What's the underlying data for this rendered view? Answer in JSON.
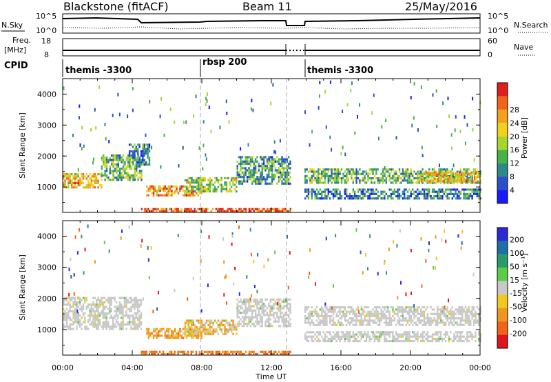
{
  "header": {
    "station": "Blackstone (fitACF)",
    "beam": "Beam 11",
    "date": "25/May/2016"
  },
  "noise_panel": {
    "left_label": "N.Sky",
    "right_label": "N.Search",
    "left_ticks": [
      "10^5",
      "10^0"
    ],
    "right_ticks": [
      "10^5",
      "10^0"
    ]
  },
  "freq_panel": {
    "left_label_1": "Freq.",
    "left_label_2": "[MHz]",
    "right_label": "Nave",
    "left_ticks": [
      "18",
      "8"
    ],
    "right_ticks": [
      "60",
      "0"
    ],
    "freq_mhz": 10.4,
    "nave": 22
  },
  "cpid_panel": {
    "label": "CPID",
    "segments": [
      {
        "text": "themis -3300",
        "start_hr": 0.0,
        "end_hr": 7.95
      },
      {
        "text": "rbsp 200",
        "start_hr": 7.95,
        "end_hr": 13.1
      },
      {
        "text": "themis -3300",
        "start_hr": 13.9,
        "end_hr": 24.0
      }
    ]
  },
  "x_axis": {
    "label": "Time UT",
    "ticks": [
      "00:00",
      "04:00",
      "08:00",
      "12:00",
      "16:00",
      "20:00",
      "00:00"
    ]
  },
  "y_axis": {
    "label": "Slant Range [km]",
    "ticks": [
      "1000",
      "2000",
      "3000",
      "4000"
    ]
  },
  "colorbar_power": {
    "label": "Power [dB]",
    "ticks": [
      "4",
      "8",
      "12",
      "16",
      "20",
      "24",
      "28"
    ],
    "colors": [
      "#1a1aff",
      "#2a4fc8",
      "#2e8a8a",
      "#46b346",
      "#a6d62a",
      "#f0d21a",
      "#f2a21a",
      "#f0641a",
      "#e01e1e"
    ]
  },
  "colorbar_velocity": {
    "label": "Velocity [m s⁻¹]",
    "ticks": [
      "200",
      "100",
      "50",
      "15",
      "-15",
      "-50",
      "-100",
      "-200"
    ],
    "colors": [
      "#2a2ad6",
      "#1e6ea8",
      "#2a9a6a",
      "#5acc46",
      "#c8c8c8",
      "#f0c81e",
      "#f0961e",
      "#f06414",
      "#e0141e"
    ]
  },
  "chart_data": {
    "type": "heatmap",
    "title": "Blackstone (fitACF) Beam 11 25/May/2016",
    "xlabel": "Time UT",
    "xlim_hours": [
      0,
      24
    ],
    "ylim_km": [
      180,
      4500
    ],
    "data_gap_hours": [
      13.1,
      13.9
    ],
    "panels": [
      {
        "name": "Power [dB]",
        "zlim": [
          0,
          30
        ],
        "bands": [
          {
            "t0": 0.0,
            "t1": 2.2,
            "r0": 1000,
            "r1": 1450,
            "v": 20
          },
          {
            "t0": 2.2,
            "t1": 4.5,
            "r0": 1250,
            "r1": 2050,
            "v": 12
          },
          {
            "t0": 3.8,
            "t1": 5.0,
            "r0": 1700,
            "r1": 2400,
            "v": 8
          },
          {
            "t0": 4.8,
            "t1": 8.0,
            "r0": 750,
            "r1": 1050,
            "v": 22
          },
          {
            "t0": 7.0,
            "t1": 10.0,
            "r0": 880,
            "r1": 1320,
            "v": 14
          },
          {
            "t0": 10.0,
            "t1": 13.1,
            "r0": 1100,
            "r1": 2000,
            "v": 10
          },
          {
            "t0": 4.5,
            "t1": 13.1,
            "r0": 200,
            "r1": 320,
            "v": 26
          },
          {
            "t0": 13.9,
            "t1": 24.0,
            "r0": 1150,
            "r1": 1600,
            "v": 12
          },
          {
            "t0": 13.9,
            "t1": 24.0,
            "r0": 650,
            "r1": 950,
            "v": 8
          },
          {
            "t0": 20.5,
            "t1": 24.0,
            "r0": 1200,
            "r1": 1500,
            "v": 20
          }
        ]
      },
      {
        "name": "Velocity [m s-1]",
        "zlim": [
          -250,
          250
        ],
        "bands": [
          {
            "t0": 0.0,
            "t1": 4.5,
            "r0": 1000,
            "r1": 2050,
            "v": 0
          },
          {
            "t0": 4.8,
            "t1": 8.0,
            "r0": 750,
            "r1": 1050,
            "v": -60
          },
          {
            "t0": 7.0,
            "t1": 10.0,
            "r0": 880,
            "r1": 1320,
            "v": -40
          },
          {
            "t0": 10.0,
            "t1": 13.1,
            "r0": 1100,
            "r1": 2000,
            "v": 0
          },
          {
            "t0": 4.5,
            "t1": 13.1,
            "r0": 200,
            "r1": 320,
            "v": -120
          },
          {
            "t0": 13.9,
            "t1": 24.0,
            "r0": 1150,
            "r1": 1750,
            "v": 0
          },
          {
            "t0": 13.9,
            "t1": 24.0,
            "r0": 650,
            "r1": 950,
            "v": 0
          }
        ]
      }
    ]
  }
}
